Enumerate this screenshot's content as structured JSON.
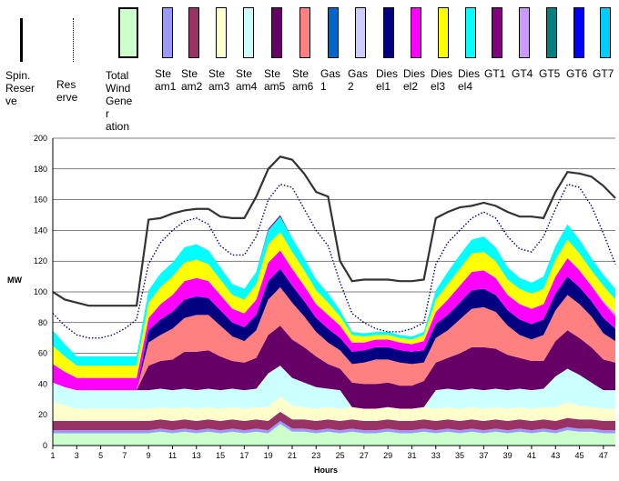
{
  "chart_data": {
    "type": "area",
    "xlabel": "Hours",
    "ylabel": "MW",
    "ylim": [
      0,
      200
    ],
    "yticks": [
      "0",
      "20",
      "40",
      "60",
      "80",
      "100",
      "120",
      "140",
      "160",
      "180",
      "200"
    ],
    "xticks": [
      "1",
      "3",
      "5",
      "7",
      "9",
      "11",
      "13",
      "15",
      "17",
      "19",
      "21",
      "23",
      "25",
      "27",
      "29",
      "31",
      "33",
      "35",
      "37",
      "39",
      "41",
      "43",
      "45",
      "47"
    ],
    "x": [
      1,
      2,
      3,
      4,
      5,
      6,
      7,
      8,
      9,
      10,
      11,
      12,
      13,
      14,
      15,
      16,
      17,
      18,
      19,
      20,
      21,
      22,
      23,
      24,
      25,
      26,
      27,
      28,
      29,
      30,
      31,
      32,
      33,
      34,
      35,
      36,
      37,
      38,
      39,
      40,
      41,
      42,
      43,
      44,
      45,
      46,
      47,
      48
    ],
    "legend_position": "top",
    "legend": [
      {
        "label": "Spin. Reserve",
        "kind": "line-solid",
        "color": "#000000"
      },
      {
        "label": "Reserve",
        "kind": "line-dotted",
        "color": "#000000"
      },
      {
        "label": "Total Wind Generation",
        "kind": "box",
        "color": "#ccffcc"
      },
      {
        "label": "Steam1",
        "kind": "box",
        "color": "#9999ff"
      },
      {
        "label": "Steam2",
        "kind": "box",
        "color": "#993366"
      },
      {
        "label": "Steam3",
        "kind": "box",
        "color": "#ffffcc"
      },
      {
        "label": "Steam4",
        "kind": "box",
        "color": "#ccffff"
      },
      {
        "label": "Steam5",
        "kind": "box",
        "color": "#660066"
      },
      {
        "label": "Steam6",
        "kind": "box",
        "color": "#ff8080"
      },
      {
        "label": "Gas1",
        "kind": "box",
        "color": "#0066cc"
      },
      {
        "label": "Gas2",
        "kind": "box",
        "color": "#ccccff"
      },
      {
        "label": "Diesel1",
        "kind": "box",
        "color": "#000080"
      },
      {
        "label": "Diesel2",
        "kind": "box",
        "color": "#ff00ff"
      },
      {
        "label": "Diesel3",
        "kind": "box",
        "color": "#ffff00"
      },
      {
        "label": "Diesel4",
        "kind": "box",
        "color": "#00ffff"
      },
      {
        "label": "GT1",
        "kind": "box",
        "color": "#800080"
      },
      {
        "label": "GT4",
        "kind": "box",
        "color": "#cc99ff"
      },
      {
        "label": "GT5",
        "kind": "box",
        "color": "#008080"
      },
      {
        "label": "GT6",
        "kind": "box",
        "color": "#0000ff"
      },
      {
        "label": "GT7",
        "kind": "box",
        "color": "#00ccff"
      }
    ],
    "series": [
      {
        "name": "Total Wind Generation",
        "color": "#ccffcc",
        "values": [
          8,
          8,
          8,
          8,
          8,
          8,
          8,
          8,
          8,
          9,
          8,
          9,
          8,
          9,
          8,
          9,
          8,
          9,
          8,
          14,
          9,
          9,
          8,
          9,
          8,
          9,
          8,
          8,
          9,
          8,
          8,
          9,
          8,
          9,
          8,
          9,
          8,
          9,
          8,
          9,
          8,
          9,
          8,
          10,
          9,
          9,
          8,
          8
        ]
      },
      {
        "name": "Steam1",
        "color": "#9999ff",
        "values": [
          2,
          2,
          2,
          2,
          2,
          2,
          2,
          2,
          2,
          2,
          2,
          2,
          2,
          2,
          2,
          2,
          2,
          2,
          2,
          2,
          2,
          2,
          2,
          2,
          2,
          2,
          2,
          2,
          2,
          2,
          2,
          2,
          2,
          2,
          2,
          2,
          2,
          2,
          2,
          2,
          2,
          2,
          2,
          2,
          2,
          2,
          2,
          2
        ]
      },
      {
        "name": "Steam2",
        "color": "#993366",
        "values": [
          6,
          6,
          6,
          6,
          6,
          6,
          6,
          6,
          6,
          6,
          6,
          6,
          6,
          6,
          6,
          6,
          6,
          6,
          6,
          6,
          6,
          6,
          6,
          6,
          6,
          6,
          6,
          6,
          6,
          6,
          6,
          6,
          6,
          6,
          6,
          6,
          6,
          6,
          6,
          6,
          6,
          6,
          6,
          6,
          6,
          6,
          6,
          6
        ]
      },
      {
        "name": "Steam3",
        "color": "#ffffcc",
        "values": [
          13,
          10,
          8,
          8,
          8,
          8,
          8,
          8,
          8,
          8,
          8,
          8,
          8,
          8,
          8,
          8,
          8,
          8,
          9,
          10,
          9,
          8,
          8,
          8,
          8,
          8,
          8,
          8,
          8,
          8,
          8,
          8,
          8,
          8,
          8,
          8,
          8,
          8,
          8,
          8,
          8,
          8,
          9,
          10,
          9,
          8,
          8,
          8
        ]
      },
      {
        "name": "Steam4",
        "color": "#ccffff",
        "values": [
          12,
          12,
          12,
          12,
          12,
          12,
          12,
          12,
          12,
          12,
          12,
          12,
          12,
          12,
          12,
          12,
          12,
          12,
          22,
          20,
          18,
          16,
          14,
          12,
          12,
          0,
          0,
          0,
          0,
          0,
          0,
          0,
          12,
          12,
          12,
          12,
          12,
          12,
          12,
          12,
          12,
          12,
          20,
          22,
          20,
          16,
          12,
          12
        ]
      },
      {
        "name": "Steam5",
        "color": "#660066",
        "values": [
          0,
          0,
          0,
          0,
          0,
          0,
          0,
          0,
          16,
          18,
          20,
          24,
          25,
          25,
          22,
          18,
          18,
          20,
          25,
          26,
          25,
          23,
          20,
          16,
          14,
          16,
          16,
          16,
          16,
          15,
          15,
          17,
          18,
          20,
          24,
          27,
          28,
          26,
          23,
          20,
          19,
          18,
          23,
          25,
          24,
          23,
          20,
          18
        ]
      },
      {
        "name": "Steam6",
        "color": "#ff8080",
        "values": [
          0,
          0,
          0,
          0,
          0,
          0,
          0,
          0,
          15,
          17,
          20,
          22,
          24,
          23,
          20,
          16,
          14,
          18,
          23,
          25,
          24,
          20,
          16,
          14,
          12,
          12,
          14,
          16,
          15,
          15,
          14,
          12,
          16,
          18,
          22,
          25,
          26,
          24,
          19,
          15,
          14,
          17,
          20,
          23,
          22,
          20,
          17,
          14
        ]
      },
      {
        "name": "Diesel1",
        "color": "#000080",
        "values": [
          0,
          0,
          0,
          0,
          0,
          0,
          0,
          0,
          8,
          10,
          11,
          12,
          12,
          11,
          10,
          9,
          9,
          10,
          12,
          12,
          11,
          10,
          9,
          9,
          8,
          8,
          8,
          8,
          8,
          8,
          8,
          8,
          9,
          10,
          11,
          12,
          12,
          11,
          10,
          10,
          10,
          10,
          11,
          12,
          11,
          10,
          10,
          8
        ]
      },
      {
        "name": "Diesel2",
        "color": "#ff00ff",
        "values": [
          12,
          10,
          8,
          8,
          8,
          8,
          8,
          8,
          8,
          10,
          11,
          12,
          12,
          11,
          10,
          9,
          9,
          10,
          12,
          12,
          11,
          10,
          9,
          9,
          8,
          6,
          5,
          5,
          5,
          5,
          5,
          6,
          8,
          10,
          11,
          12,
          12,
          11,
          10,
          10,
          10,
          10,
          11,
          12,
          11,
          10,
          10,
          8
        ]
      },
      {
        "name": "GT4",
        "color": "#cc99ff",
        "values": [
          0,
          0,
          0,
          0,
          0,
          0,
          0,
          0,
          0,
          0,
          0,
          0,
          0,
          0,
          0,
          0,
          0,
          0,
          0,
          0,
          0,
          0,
          0,
          0,
          0,
          0,
          0,
          0,
          0,
          0,
          0,
          0,
          0,
          0,
          0,
          0,
          0,
          0,
          0,
          0,
          0,
          0,
          0,
          0,
          0,
          0,
          1,
          2
        ]
      },
      {
        "name": "Diesel3",
        "color": "#ffff00",
        "values": [
          12,
          10,
          8,
          8,
          8,
          8,
          8,
          8,
          10,
          11,
          12,
          12,
          12,
          11,
          10,
          9,
          9,
          10,
          12,
          12,
          11,
          10,
          9,
          8,
          6,
          5,
          4,
          3,
          3,
          3,
          3,
          4,
          8,
          10,
          11,
          12,
          12,
          11,
          10,
          10,
          10,
          10,
          11,
          12,
          11,
          10,
          10,
          9
        ]
      },
      {
        "name": "Diesel4",
        "color": "#00ffff",
        "values": [
          10,
          8,
          6,
          6,
          6,
          6,
          6,
          6,
          8,
          9,
          9,
          10,
          10,
          9,
          8,
          7,
          7,
          8,
          9,
          10,
          9,
          8,
          7,
          6,
          4,
          2,
          2,
          2,
          2,
          2,
          2,
          2,
          6,
          8,
          9,
          9,
          10,
          9,
          8,
          7,
          7,
          8,
          9,
          10,
          9,
          8,
          7,
          7
        ]
      },
      {
        "name": "GT1",
        "color": "#800080",
        "values": [
          0,
          0,
          0,
          0,
          0,
          0,
          0,
          0,
          0,
          0,
          0,
          0,
          0,
          0,
          0,
          0,
          0,
          0,
          1,
          1,
          0,
          0,
          0,
          0,
          0,
          0,
          0,
          0,
          0,
          0,
          0,
          0,
          0,
          0,
          0,
          0,
          0,
          0,
          0,
          0,
          0,
          0,
          0,
          0,
          0,
          0,
          0,
          0
        ]
      }
    ],
    "reserve": [
      86,
      78,
      72,
      70,
      70,
      72,
      76,
      82,
      118,
      132,
      140,
      146,
      148,
      144,
      130,
      124,
      124,
      136,
      160,
      170,
      168,
      154,
      140,
      130,
      106,
      86,
      80,
      76,
      74,
      74,
      76,
      80,
      118,
      132,
      140,
      148,
      152,
      148,
      136,
      128,
      126,
      136,
      154,
      170,
      168,
      156,
      138,
      118
    ],
    "spin_reserve": [
      100,
      95,
      93,
      91,
      91,
      91,
      91,
      91,
      147,
      148,
      151,
      153,
      154,
      154,
      149,
      148,
      148,
      162,
      180,
      188,
      186,
      177,
      165,
      162,
      120,
      107,
      108,
      108,
      108,
      107,
      107,
      108,
      148,
      152,
      155,
      156,
      158,
      156,
      152,
      149,
      149,
      148,
      165,
      178,
      177,
      175,
      169,
      161
    ]
  }
}
